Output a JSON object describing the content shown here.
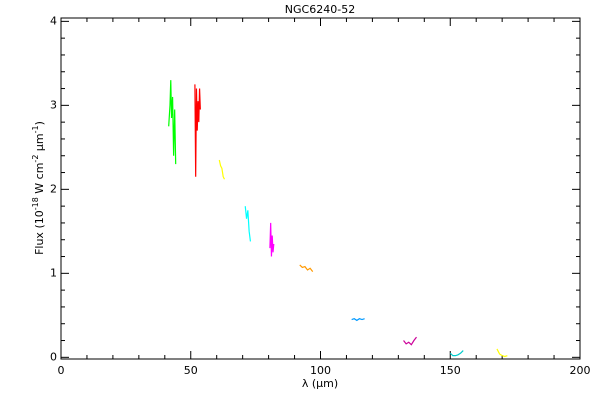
{
  "chart_data": {
    "type": "line",
    "title": "NGC6240-52",
    "x_label": "λ (μm)",
    "y_label": [
      "Flux (10",
      "-18",
      " W cm",
      "-2",
      " μm",
      "-1",
      ")"
    ],
    "xlim": [
      0,
      200
    ],
    "ylim": [
      -0.02,
      4.04
    ],
    "xticks": [
      0,
      50,
      100,
      150,
      200
    ],
    "yticks": [
      0,
      1,
      2,
      3,
      4
    ],
    "xminor_ticks": [
      10,
      20,
      30,
      40,
      60,
      70,
      80,
      90,
      110,
      120,
      130,
      140,
      160,
      170,
      180,
      190
    ],
    "yminor_ticks": [
      0.2,
      0.4,
      0.6,
      0.8,
      1.2,
      1.4,
      1.6,
      1.8,
      2.2,
      2.4,
      2.6,
      2.8,
      3.2,
      3.4,
      3.6,
      3.8
    ],
    "grid": false,
    "series": [
      {
        "color": "#00ff00",
        "x": [
          41.5,
          42,
          42.3,
          42.6,
          43,
          43.4,
          43.8,
          44.2
        ],
        "y": [
          2.75,
          3.0,
          3.3,
          2.85,
          3.1,
          2.4,
          2.95,
          2.3
        ]
      },
      {
        "color": "#ff0000",
        "x": [
          51.6,
          51.9,
          52.2,
          52.5,
          52.8,
          53.1,
          53.4,
          53.7
        ],
        "y": [
          3.25,
          2.15,
          3.2,
          2.7,
          3.05,
          2.8,
          3.2,
          2.95
        ]
      },
      {
        "color": "#ffff00",
        "x": [
          61,
          61.5,
          62,
          62.5,
          63
        ],
        "y": [
          2.35,
          2.28,
          2.25,
          2.15,
          2.12
        ]
      },
      {
        "color": "#00ffff",
        "x": [
          71,
          71.5,
          72,
          72.5,
          73
        ],
        "y": [
          1.8,
          1.65,
          1.75,
          1.5,
          1.38
        ]
      },
      {
        "color": "#ff00ff",
        "x": [
          80.5,
          80.8,
          81.1,
          81.4,
          81.7,
          82
        ],
        "y": [
          1.3,
          1.6,
          1.2,
          1.45,
          1.25,
          1.35
        ]
      },
      {
        "color": "#ff9900",
        "x": [
          92,
          93,
          94,
          95,
          96,
          97
        ],
        "y": [
          1.1,
          1.07,
          1.08,
          1.04,
          1.06,
          1.02
        ]
      },
      {
        "color": "#0099ff",
        "x": [
          112,
          113,
          114,
          115,
          116,
          117
        ],
        "y": [
          0.45,
          0.46,
          0.44,
          0.46,
          0.45,
          0.46
        ]
      },
      {
        "color": "#cc0099",
        "x": [
          132,
          133,
          134,
          135,
          136,
          137
        ],
        "y": [
          0.2,
          0.16,
          0.18,
          0.15,
          0.2,
          0.24
        ]
      },
      {
        "color": "#00cccc",
        "x": [
          150,
          151,
          152,
          153,
          154,
          155
        ],
        "y": [
          0.05,
          0.02,
          0.02,
          0.03,
          0.05,
          0.08
        ]
      },
      {
        "color": "#ffff00",
        "x": [
          168,
          169,
          170,
          171,
          172
        ],
        "y": [
          0.1,
          0.04,
          0.02,
          0.01,
          0.02
        ]
      }
    ]
  }
}
